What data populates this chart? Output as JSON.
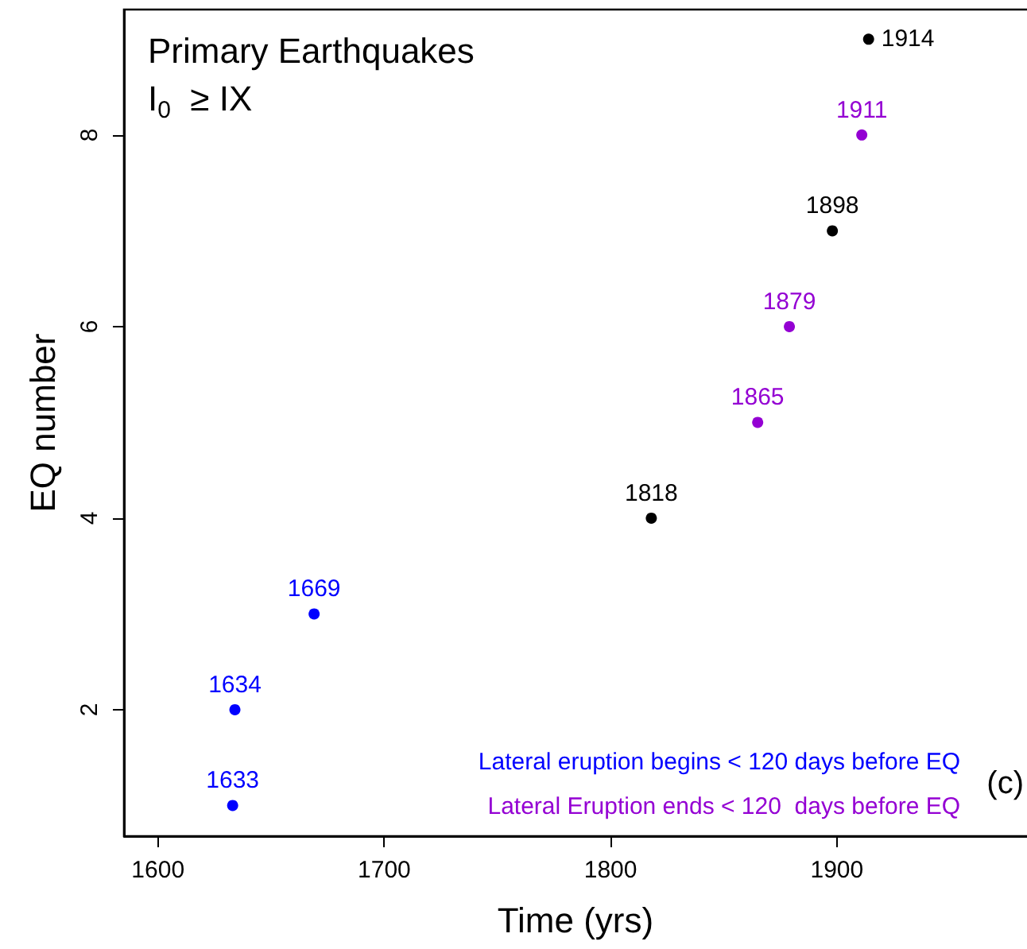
{
  "chart_data": {
    "type": "scatter",
    "title": "Primary Earthquakes",
    "subtitle": "I$_{0}$ ≥ IX",
    "xlabel": "Time (yrs)",
    "ylabel": "EQ number",
    "series": [
      {
        "color": "#0000ff",
        "x": [
          1633,
          1634,
          1669
        ],
        "values": [
          1,
          2,
          3
        ]
      },
      {
        "color": "#000000",
        "x": [
          1818,
          1898,
          1914
        ],
        "values": [
          4,
          7,
          9
        ]
      },
      {
        "color": "#9400d3",
        "x": [
          1865,
          1879,
          1911
        ],
        "values": [
          5,
          6,
          8
        ]
      }
    ],
    "annotations": [
      "Lateral eruption begins < 120 days before EQ",
      "Lateral Eruption ends < 120  days before EQ",
      "(c)",
      {
        "text": "1633",
        "x": 1633,
        "y": 1
      },
      {
        "text": "1634",
        "x": 1634,
        "y": 2
      },
      {
        "text": "1669",
        "x": 1669,
        "y": 3
      },
      {
        "text": "1818",
        "x": 1818,
        "y": 4
      },
      {
        "text": "1865",
        "x": 1865,
        "y": 5
      },
      {
        "text": "1879",
        "x": 1879,
        "y": 6
      },
      {
        "text": "1898",
        "x": 1898,
        "y": 7
      },
      {
        "text": "1911",
        "x": 1911,
        "y": 8
      },
      {
        "text": "1914",
        "x": 1914,
        "y": 9
      }
    ],
    "xlim": [
      1585,
      1984
    ],
    "xticks": [
      1600,
      1700,
      1800,
      1900
    ],
    "ylim": [
      0.68,
      9.31
    ],
    "yticks": [
      2,
      4,
      6,
      8
    ],
    "grid": false,
    "marker": "circle"
  }
}
